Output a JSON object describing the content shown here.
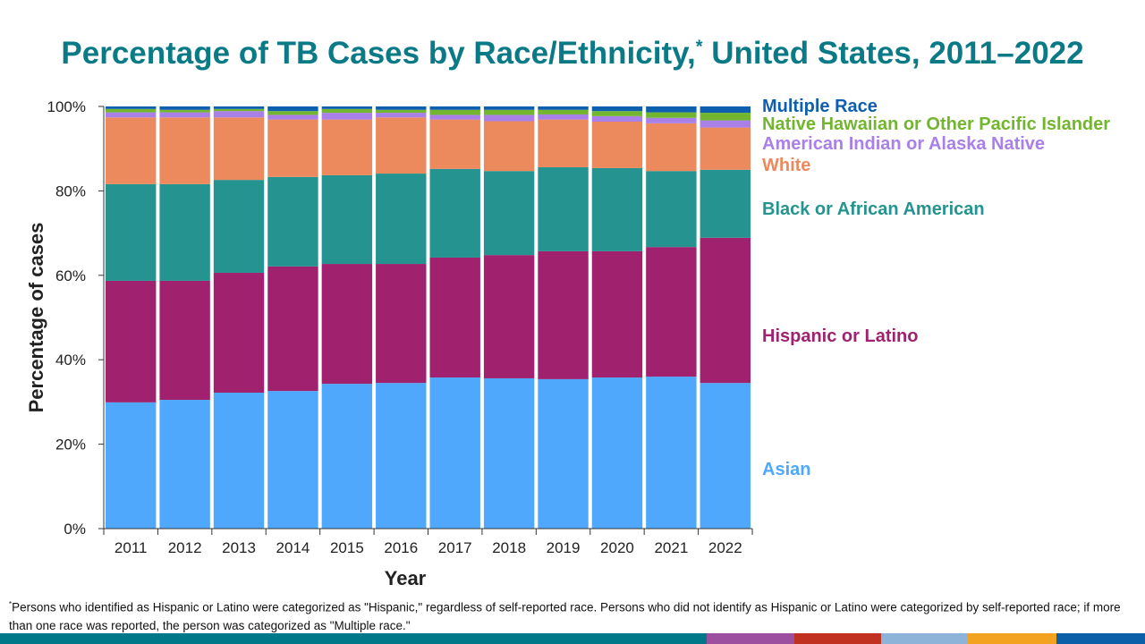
{
  "title": "Percentage of TB Cases by Race/Ethnicity,",
  "title_mark": "*",
  "title_suffix": " United States, 2011–2022",
  "footnote_mark": "*",
  "footnote": "Persons who identified as Hispanic or Latino were categorized as \"Hispanic,\" regardless of self-reported race. Persons who did not identify as Hispanic or Latino were categorized by self-reported race; if more than one race was reported, the person was categorized as \"Multiple race.\"",
  "footer_bar_colors": [
    "#00788a",
    "#9b4f9e",
    "#c0311f",
    "#8db3d9",
    "#f3a21f",
    "#0b5ea8"
  ],
  "chart_data": {
    "type": "bar",
    "stacked": true,
    "xlabel": "Year",
    "ylabel": "Percentage of cases",
    "ylim": [
      0,
      100
    ],
    "yticks": [
      "0%",
      "20%",
      "40%",
      "60%",
      "80%",
      "100%"
    ],
    "categories": [
      "2011",
      "2012",
      "2013",
      "2014",
      "2015",
      "2016",
      "2017",
      "2018",
      "2019",
      "2020",
      "2021",
      "2022"
    ],
    "legend_placement": "right",
    "series": [
      {
        "name": "Asian",
        "color": "#4fa8fb",
        "values": [
          29.9,
          30.5,
          32.2,
          32.6,
          34.3,
          34.5,
          35.8,
          35.6,
          35.4,
          35.8,
          36.0,
          34.5
        ]
      },
      {
        "name": "Hispanic or Latino",
        "color": "#a0226e",
        "values": [
          28.8,
          28.2,
          28.4,
          29.5,
          28.4,
          28.2,
          28.4,
          29.2,
          30.3,
          29.9,
          30.7,
          34.4
        ]
      },
      {
        "name": "Black or African American",
        "color": "#259490",
        "values": [
          22.9,
          22.9,
          22.0,
          21.2,
          21.0,
          21.4,
          21.0,
          19.9,
          19.9,
          19.7,
          18.0,
          16.1
        ]
      },
      {
        "name": "White",
        "color": "#ec8a5e",
        "values": [
          15.8,
          15.8,
          14.8,
          13.6,
          13.2,
          13.3,
          11.7,
          11.8,
          11.3,
          11.0,
          11.3,
          10.0
        ]
      },
      {
        "name": "American Indian or Alaska Native",
        "color": "#a97fe8",
        "values": [
          1.2,
          1.2,
          1.5,
          1.1,
          1.6,
          1.1,
          1.1,
          1.5,
          1.2,
          1.3,
          1.3,
          1.7
        ]
      },
      {
        "name": "Native Hawaiian or Other Pacific Islander",
        "color": "#72b62f",
        "values": [
          0.8,
          0.6,
          0.5,
          0.9,
          0.9,
          0.7,
          1.2,
          1.2,
          1.1,
          1.2,
          1.3,
          1.8
        ]
      },
      {
        "name": "Multiple Race",
        "color": "#0f5fb0",
        "values": [
          0.6,
          0.8,
          0.6,
          1.1,
          0.6,
          0.8,
          0.8,
          0.8,
          0.8,
          1.1,
          1.4,
          1.5
        ]
      }
    ]
  }
}
